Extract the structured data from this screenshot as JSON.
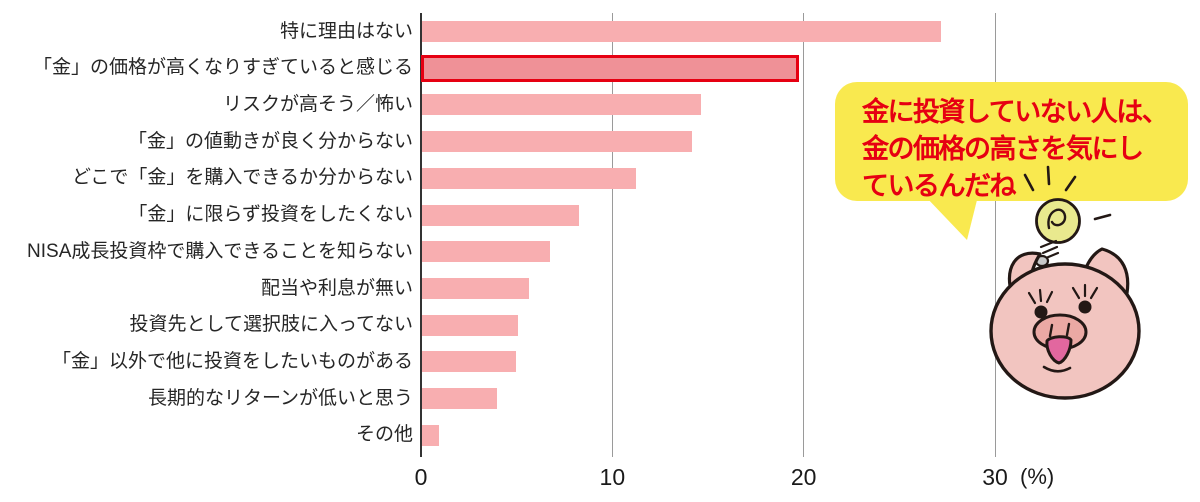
{
  "chart_data": {
    "type": "bar",
    "orientation": "horizontal",
    "categories": [
      "特に理由はない",
      "「金」の価格が高くなりすぎていると感じる",
      "リスクが高そう／怖い",
      "「金」の値動きが良く分からない",
      "どこで「金」を購入できるか分からない",
      "「金」に限らず投資をしたくない",
      "NISA成長投資枠で購入できることを知らない",
      "配当や利息が無い",
      "投資先として選択肢に入ってない",
      "「金」以外で他に投資をしたいものがある",
      "長期的なリターンが低いと思う",
      "その他"
    ],
    "values": [
      27.1,
      19.5,
      14.6,
      14.1,
      11.2,
      8.2,
      6.7,
      5.6,
      5.0,
      4.9,
      3.9,
      0.9
    ],
    "highlight_index": 1,
    "xticks": [
      0,
      10,
      20,
      30
    ],
    "xlabel": "(%)",
    "xlim": [
      0,
      30
    ],
    "grid": "vertical gridlines at each x tick, no bottom baseline",
    "legend": "none",
    "bar_color": "#f8aeb0",
    "highlight_fill": "#ef9197",
    "highlight_border": "#e60012",
    "gridline_color": "#9a9a9a",
    "axis_color": "#333333",
    "label_color": "#262626"
  },
  "annotation": {
    "lines": [
      "金に投資していない人は、",
      "金の価格の高さを気にし",
      "ているんだね"
    ],
    "text_color": "#e60012",
    "bubble_color": "#f9e94f"
  },
  "illustrations": {
    "lightbulb": "hand-drawn lightbulb doodle with radiating dashes",
    "pig": "pink pig face character with eyelashes and open mouth"
  }
}
